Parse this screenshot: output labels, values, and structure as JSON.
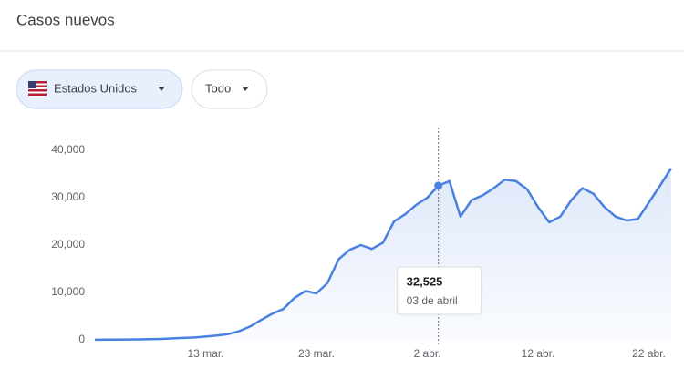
{
  "header": {
    "title": "Casos nuevos"
  },
  "filters": {
    "country": "Estados Unidos",
    "range": "Todo"
  },
  "chart_data": {
    "type": "line",
    "categories": [
      null,
      null,
      null,
      null,
      null,
      null,
      null,
      null,
      null,
      null,
      "13 mar.",
      null,
      null,
      null,
      null,
      null,
      null,
      null,
      null,
      null,
      "23 mar.",
      null,
      null,
      null,
      null,
      null,
      null,
      null,
      null,
      null,
      "2 abr.",
      null,
      null,
      null,
      null,
      null,
      null,
      null,
      null,
      null,
      "12 abr.",
      null,
      null,
      null,
      null,
      null,
      null,
      null,
      null,
      null,
      "22 abr.",
      null,
      null
    ],
    "values": [
      20,
      30,
      50,
      80,
      100,
      150,
      200,
      300,
      400,
      500,
      700,
      900,
      1200,
      1800,
      2800,
      4200,
      5500,
      6500,
      8800,
      10300,
      9800,
      12000,
      17000,
      19000,
      20000,
      19200,
      20500,
      25000,
      26500,
      28500,
      30000,
      32525,
      33500,
      26000,
      29500,
      30500,
      32000,
      33800,
      33500,
      31800,
      28000,
      24800,
      26000,
      29500,
      32000,
      30800,
      28000,
      26000,
      25200,
      25500,
      29000,
      32500,
      36200
    ],
    "color": "#4a80e0",
    "ylim": [
      0,
      40000
    ],
    "yticks": [
      0,
      {
        "value": 10000,
        "label": "10,000"
      },
      {
        "value": 20000,
        "label": "20,000"
      },
      {
        "value": 30000,
        "label": "30,000"
      },
      {
        "value": 40000,
        "label": "40,000"
      }
    ],
    "grid": false,
    "tooltip": {
      "value": 32525,
      "label": "32,525",
      "date": "03 de abril"
    }
  }
}
